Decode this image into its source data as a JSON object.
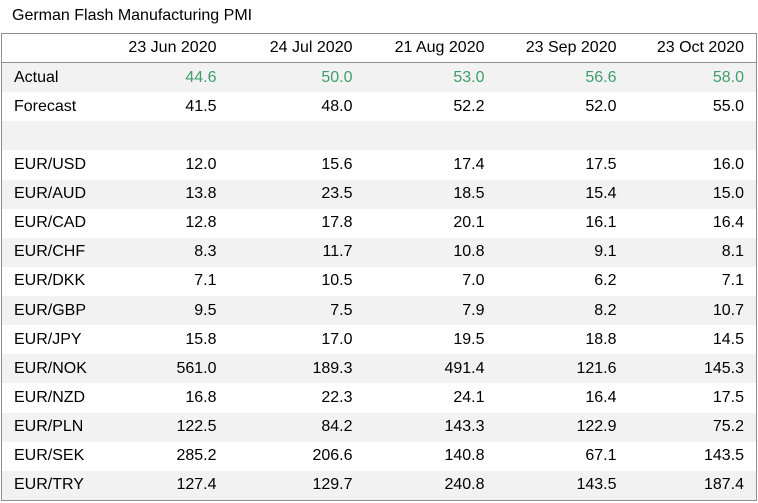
{
  "title": "German Flash Manufacturing PMI",
  "columns": [
    "23 Jun 2020",
    "24 Jul 2020",
    "21 Aug 2020",
    "23 Sep 2020",
    "23 Oct 2020"
  ],
  "rows": [
    {
      "label": "Actual",
      "values": [
        "44.6",
        "50.0",
        "53.0",
        "56.6",
        "58.0"
      ],
      "highlight": true
    },
    {
      "label": "Forecast",
      "values": [
        "41.5",
        "48.0",
        "52.2",
        "52.0",
        "55.0"
      ]
    },
    {
      "label": "",
      "values": [
        "",
        "",
        "",
        "",
        ""
      ]
    },
    {
      "label": "EUR/USD",
      "values": [
        "12.0",
        "15.6",
        "17.4",
        "17.5",
        "16.0"
      ]
    },
    {
      "label": "EUR/AUD",
      "values": [
        "13.8",
        "23.5",
        "18.5",
        "15.4",
        "15.0"
      ]
    },
    {
      "label": "EUR/CAD",
      "values": [
        "12.8",
        "17.8",
        "20.1",
        "16.1",
        "16.4"
      ]
    },
    {
      "label": "EUR/CHF",
      "values": [
        "8.3",
        "11.7",
        "10.8",
        "9.1",
        "8.1"
      ]
    },
    {
      "label": "EUR/DKK",
      "values": [
        "7.1",
        "10.5",
        "7.0",
        "6.2",
        "7.1"
      ]
    },
    {
      "label": "EUR/GBP",
      "values": [
        "9.5",
        "7.5",
        "7.9",
        "8.2",
        "10.7"
      ]
    },
    {
      "label": "EUR/JPY",
      "values": [
        "15.8",
        "17.0",
        "19.5",
        "18.8",
        "14.5"
      ]
    },
    {
      "label": "EUR/NOK",
      "values": [
        "561.0",
        "189.3",
        "491.4",
        "121.6",
        "145.3"
      ]
    },
    {
      "label": "EUR/NZD",
      "values": [
        "16.8",
        "22.3",
        "24.1",
        "16.4",
        "17.5"
      ]
    },
    {
      "label": "EUR/PLN",
      "values": [
        "122.5",
        "84.2",
        "143.3",
        "122.9",
        "75.2"
      ]
    },
    {
      "label": "EUR/SEK",
      "values": [
        "285.2",
        "206.6",
        "140.8",
        "67.1",
        "143.5"
      ]
    },
    {
      "label": "EUR/TRY",
      "values": [
        "127.4",
        "129.7",
        "240.8",
        "143.5",
        "187.4"
      ]
    }
  ],
  "colors": {
    "actual_green": "#3f9e6b",
    "stripe": "#f2f2f2",
    "border": "#8f8f8f"
  }
}
